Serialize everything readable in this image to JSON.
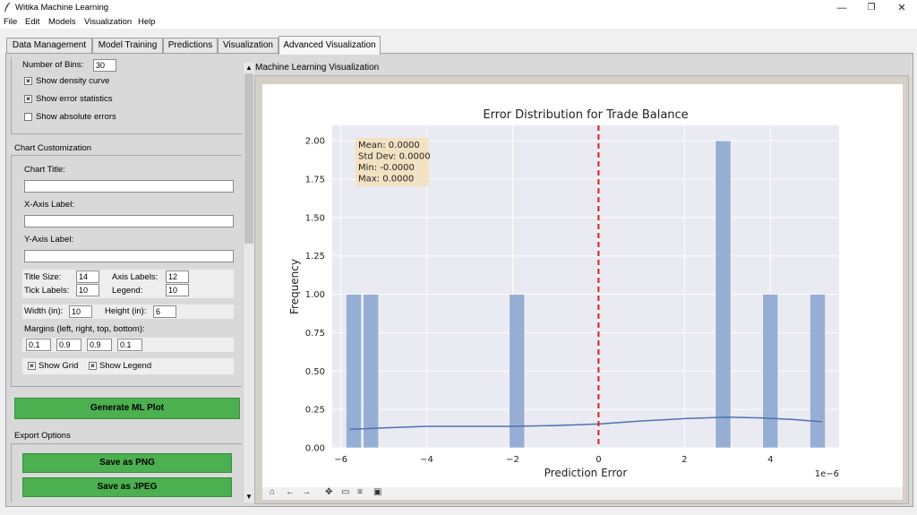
{
  "window": {
    "title": "Witika Machine Learning",
    "controls": {
      "minimize": "—",
      "maximize": "❐",
      "close": "✕"
    }
  },
  "menu": [
    "File",
    "Edit",
    "Models",
    "Visualization",
    "Help"
  ],
  "tabs": [
    "Data Management",
    "Model Training",
    "Predictions",
    "Visualization",
    "Advanced Visualization"
  ],
  "active_tab": "Advanced Visualization",
  "left": {
    "bins_label": "Number of Bins:",
    "bins_value": "30",
    "show_density_curve": {
      "label": "Show density curve",
      "checked": true
    },
    "show_error_statistics": {
      "label": "Show error statistics",
      "checked": true
    },
    "show_absolute_errors": {
      "label": "Show absolute errors",
      "checked": false
    },
    "customization_title": "Chart Customization",
    "chart_title_label": "Chart Title:",
    "chart_title_value": "",
    "x_label_label": "X-Axis Label:",
    "x_label_value": "",
    "y_label_label": "Y-Axis Label:",
    "y_label_value": "",
    "title_size_label": "Title Size:",
    "title_size_value": "14",
    "axis_labels_label": "Axis Labels:",
    "axis_labels_value": "12",
    "tick_labels_label": "Tick Labels:",
    "tick_labels_value": "10",
    "legend_label": "Legend:",
    "legend_value": "10",
    "width_label": "Width (in):",
    "width_value": "10",
    "height_label": "Height (in):",
    "height_value": "6",
    "margins_label": "Margins (left, right, top, bottom):",
    "margins": [
      "0.1",
      "0.9",
      "0.9",
      "0.1"
    ],
    "show_grid": {
      "label": "Show Grid",
      "checked": true
    },
    "show_legend": {
      "label": "Show Legend",
      "checked": true
    },
    "generate_button": "Generate ML Plot",
    "export_title": "Export Options",
    "save_png": "Save as PNG",
    "save_jpeg": "Save as JPEG"
  },
  "right": {
    "panel_title": "Machine Learning Visualization"
  },
  "colors": {
    "bar": "#97aed4",
    "density": "#4c72b0",
    "mean_line": "#e41a1c",
    "plot_bg": "#eaeaf2",
    "stats_box": "#f5deb3",
    "green": "#4caf50"
  },
  "chart_data": {
    "type": "bar",
    "title": "Error Distribution for Trade Balance",
    "xlabel": "Prediction Error",
    "ylabel": "Frequency",
    "x_offset_label": "1e−6",
    "xlim": [
      -6.2,
      5.6
    ],
    "ylim": [
      0,
      2.1
    ],
    "x_ticks": [
      -6,
      -4,
      -2,
      0,
      2,
      4
    ],
    "x_tick_labels": [
      "−6",
      "−4",
      "−2",
      "0",
      "2",
      "4"
    ],
    "y_ticks": [
      0,
      0.25,
      0.5,
      0.75,
      1.0,
      1.25,
      1.5,
      1.75,
      2.0
    ],
    "y_tick_labels": [
      "0.00",
      "0.25",
      "0.50",
      "0.75",
      "1.00",
      "1.25",
      "1.50",
      "1.75",
      "2.00"
    ],
    "bin_width": 0.36,
    "bars": [
      {
        "x": -5.7,
        "value": 1
      },
      {
        "x": -5.3,
        "value": 1
      },
      {
        "x": -1.9,
        "value": 1
      },
      {
        "x": 2.9,
        "value": 2
      },
      {
        "x": 4.0,
        "value": 1
      },
      {
        "x": 5.1,
        "value": 1
      }
    ],
    "mean_line_x": 0,
    "density_curve": [
      [
        -5.8,
        0.12
      ],
      [
        -5.0,
        0.13
      ],
      [
        -4.0,
        0.14
      ],
      [
        -3.0,
        0.14
      ],
      [
        -2.0,
        0.14
      ],
      [
        -1.0,
        0.145
      ],
      [
        0.0,
        0.155
      ],
      [
        1.0,
        0.175
      ],
      [
        2.0,
        0.19
      ],
      [
        3.0,
        0.2
      ],
      [
        3.8,
        0.195
      ],
      [
        4.5,
        0.185
      ],
      [
        5.2,
        0.17
      ]
    ],
    "stats": [
      "Mean: 0.0000",
      "Std Dev: 0.0000",
      "Min: -0.0000",
      "Max: 0.0000"
    ],
    "grid": true
  }
}
